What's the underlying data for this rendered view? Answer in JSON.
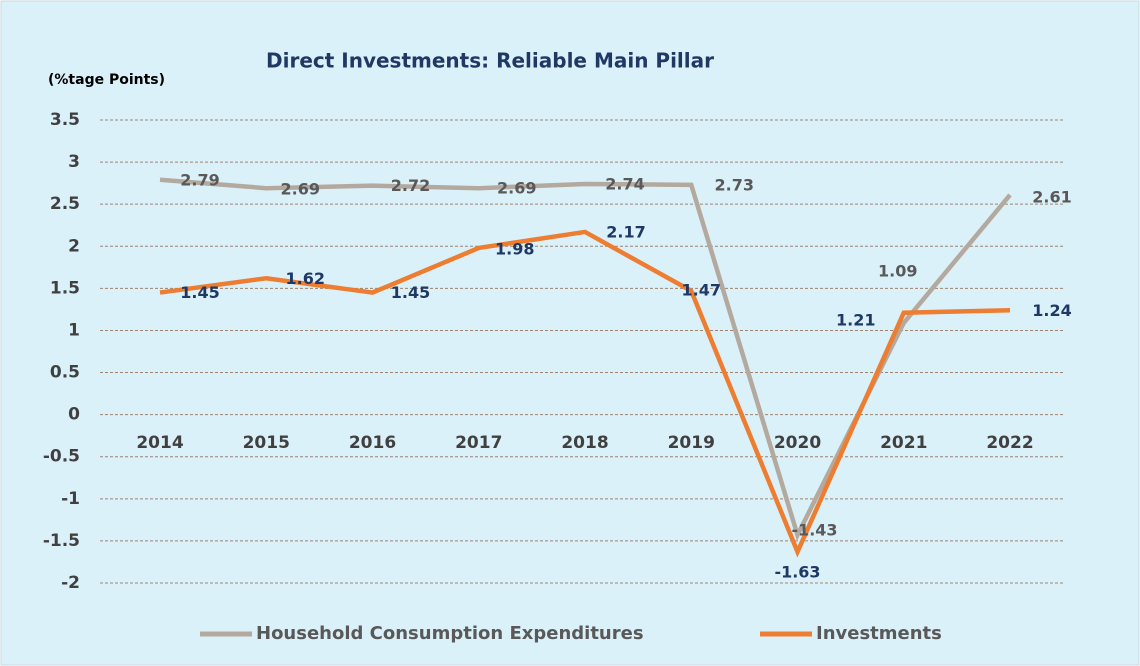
{
  "chart_data": {
    "type": "line",
    "title": "Direct Investments: Reliable Main Pillar",
    "y_label": "(%tage Points)",
    "categories": [
      "2014",
      "2015",
      "2016",
      "2017",
      "2018",
      "2019",
      "2020",
      "2021",
      "2022"
    ],
    "series": [
      {
        "name": "Household Consumption Expenditures",
        "color": "#b3a99e",
        "label_color": "#595959",
        "values": [
          2.79,
          2.69,
          2.72,
          2.69,
          2.74,
          2.73,
          -1.43,
          1.09,
          2.61
        ]
      },
      {
        "name": "Investments",
        "color": "#ed7d31",
        "label_color": "#1f3864",
        "values": [
          1.45,
          1.62,
          1.45,
          1.98,
          2.17,
          1.47,
          -1.63,
          1.21,
          1.24
        ]
      }
    ],
    "ylim": [
      -2,
      3.5
    ],
    "yticks": [
      3.5,
      3,
      2.5,
      2,
      1.5,
      1,
      0.5,
      0,
      -0.5,
      -1,
      -1.5,
      -2
    ],
    "grid": true,
    "legend": "bottom"
  }
}
